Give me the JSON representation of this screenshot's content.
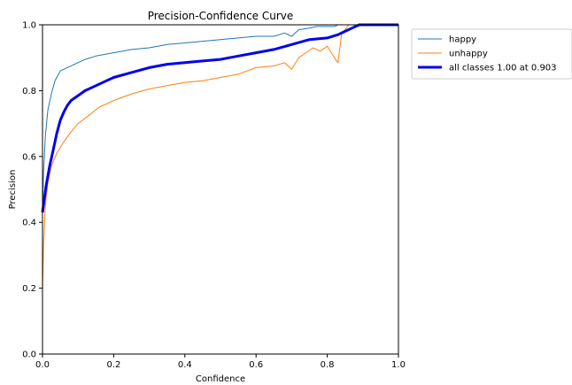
{
  "chart_data": {
    "type": "line",
    "title": "Precision-Confidence Curve",
    "xlabel": "Confidence",
    "ylabel": "Precision",
    "xlim": [
      0,
      1
    ],
    "ylim": [
      0,
      1
    ],
    "xticks": [
      "0.0",
      "0.2",
      "0.4",
      "0.6",
      "0.8",
      "1.0"
    ],
    "yticks": [
      "0.0",
      "0.2",
      "0.4",
      "0.6",
      "0.8",
      "1.0"
    ],
    "grid": false,
    "legend_position": "outside-top-right",
    "series": [
      {
        "name": "happy",
        "color": "#1f77b4",
        "x": [
          0.0,
          0.003,
          0.008,
          0.015,
          0.025,
          0.035,
          0.05,
          0.07,
          0.09,
          0.12,
          0.15,
          0.2,
          0.25,
          0.3,
          0.35,
          0.4,
          0.45,
          0.5,
          0.55,
          0.6,
          0.65,
          0.68,
          0.7,
          0.72,
          0.75,
          0.77,
          0.8,
          0.82,
          0.83,
          0.84,
          0.86,
          0.88,
          0.9,
          1.0
        ],
        "y": [
          0.44,
          0.55,
          0.66,
          0.74,
          0.79,
          0.83,
          0.86,
          0.87,
          0.88,
          0.895,
          0.905,
          0.915,
          0.925,
          0.93,
          0.94,
          0.945,
          0.95,
          0.955,
          0.96,
          0.965,
          0.965,
          0.975,
          0.965,
          0.985,
          0.99,
          0.995,
          0.995,
          0.995,
          1.0,
          1.0,
          1.0,
          1.0,
          1.0,
          1.0
        ]
      },
      {
        "name": "unhappy",
        "color": "#ff7f0e",
        "x": [
          0.0,
          0.003,
          0.008,
          0.015,
          0.025,
          0.04,
          0.06,
          0.08,
          0.1,
          0.13,
          0.16,
          0.2,
          0.25,
          0.3,
          0.35,
          0.4,
          0.45,
          0.5,
          0.55,
          0.6,
          0.65,
          0.68,
          0.7,
          0.72,
          0.74,
          0.76,
          0.78,
          0.8,
          0.82,
          0.83,
          0.84,
          0.85,
          0.86,
          0.88,
          0.9,
          1.0
        ],
        "y": [
          0.19,
          0.33,
          0.45,
          0.52,
          0.57,
          0.61,
          0.645,
          0.675,
          0.7,
          0.725,
          0.75,
          0.77,
          0.79,
          0.805,
          0.815,
          0.825,
          0.83,
          0.84,
          0.85,
          0.87,
          0.875,
          0.885,
          0.865,
          0.9,
          0.915,
          0.93,
          0.92,
          0.935,
          0.9,
          0.885,
          0.97,
          0.985,
          1.0,
          1.0,
          1.0,
          1.0
        ]
      },
      {
        "name": "all classes 1.00 at 0.903",
        "color": "#0000ee",
        "x": [
          0.0,
          0.005,
          0.01,
          0.02,
          0.03,
          0.04,
          0.05,
          0.06,
          0.07,
          0.08,
          0.1,
          0.12,
          0.15,
          0.18,
          0.2,
          0.25,
          0.3,
          0.35,
          0.4,
          0.45,
          0.5,
          0.55,
          0.6,
          0.65,
          0.7,
          0.75,
          0.8,
          0.83,
          0.85,
          0.87,
          0.89,
          0.903,
          1.0
        ],
        "y": [
          0.43,
          0.47,
          0.51,
          0.57,
          0.62,
          0.67,
          0.71,
          0.735,
          0.755,
          0.77,
          0.785,
          0.8,
          0.815,
          0.83,
          0.84,
          0.855,
          0.87,
          0.88,
          0.885,
          0.89,
          0.895,
          0.905,
          0.915,
          0.925,
          0.94,
          0.955,
          0.96,
          0.97,
          0.98,
          0.99,
          1.0,
          1.0,
          1.0
        ]
      }
    ]
  }
}
